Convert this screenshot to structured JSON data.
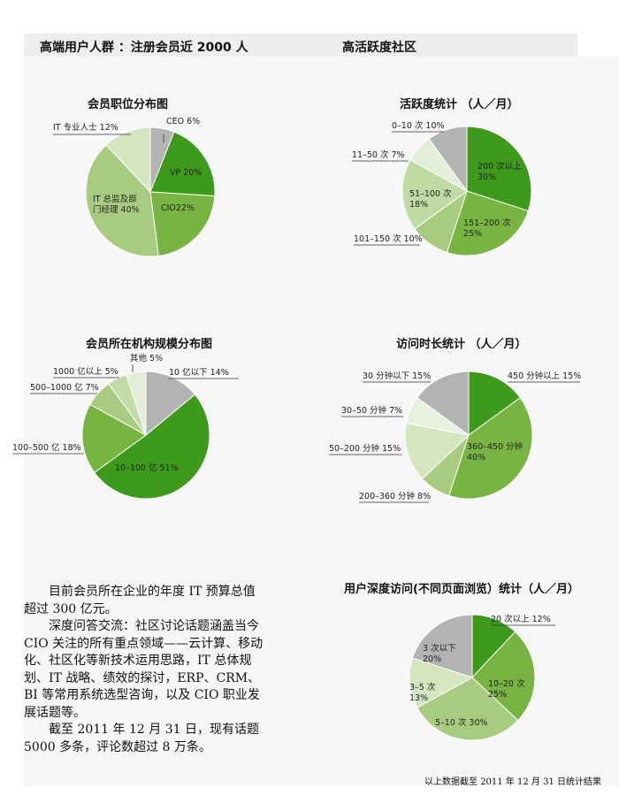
{
  "header": {
    "left": "高端用户人群 ：注册会员近 2000 人",
    "right": "高活跃度社区"
  },
  "colors": {
    "header_bg": "#eeeeee",
    "section_bg": "#f7f7f7",
    "green_dark": "#3e9a1a",
    "green_mid": "#78b442",
    "green_light": "#a7cc7f",
    "green_pale": "#d3e6c0",
    "gray": "#b3b3b3"
  },
  "chart_data": [
    {
      "type": "pie",
      "title": "会员职位分布图",
      "slices": [
        {
          "label": "CEO 6%",
          "value": 6,
          "color": "#b3b3b3"
        },
        {
          "label": "VP 20%",
          "value": 20,
          "color": "#3e9a1a"
        },
        {
          "label": "CIO22%",
          "value": 22,
          "color": "#78b442"
        },
        {
          "label": "IT 总监及部门经理 40%",
          "value": 40,
          "color": "#a7cc7f"
        },
        {
          "label": "IT 专业人士 12%",
          "value": 12,
          "color": "#d3e6c0"
        }
      ]
    },
    {
      "type": "pie",
      "title": "活跃度统计 （人／月）",
      "slices": [
        {
          "label": "200 次以上 30%",
          "value": 30,
          "color": "#3e9a1a"
        },
        {
          "label": "151–200 次 25%",
          "value": 25,
          "color": "#78b442"
        },
        {
          "label": "101–150 次 10%",
          "value": 10,
          "color": "#a7cc7f"
        },
        {
          "label": "51–100 次 18%",
          "value": 18,
          "color": "#bfdaa2"
        },
        {
          "label": "11–50 次 7%",
          "value": 7,
          "color": "#e3eed8"
        },
        {
          "label": "0–10 次 10%",
          "value": 10,
          "color": "#b3b3b3"
        }
      ]
    },
    {
      "type": "pie",
      "title": "会员所在机构规模分布图",
      "slices": [
        {
          "label": "10 亿以下 14%",
          "value": 14,
          "color": "#b3b3b3"
        },
        {
          "label": "10–100 亿 51%",
          "value": 51,
          "color": "#3e9a1a"
        },
        {
          "label": "100–500 亿 18%",
          "value": 18,
          "color": "#78b442"
        },
        {
          "label": "500–1000 亿 7%",
          "value": 7,
          "color": "#a7cc7f"
        },
        {
          "label": "1000 亿以上 5%",
          "value": 5,
          "color": "#c3dca9"
        },
        {
          "label": "其他 5%",
          "value": 5,
          "color": "#e3eed8"
        }
      ]
    },
    {
      "type": "pie",
      "title": "访问时长统计 （人／月）",
      "slices": [
        {
          "label": "450 分钟以上 15%",
          "value": 15,
          "color": "#3e9a1a"
        },
        {
          "label": "360–450 分钟 40%",
          "value": 40,
          "color": "#78b442"
        },
        {
          "label": "200–360 分钟 8%",
          "value": 8,
          "color": "#a7cc7f"
        },
        {
          "label": "50–200 分钟 15%",
          "value": 15,
          "color": "#d3e6c0"
        },
        {
          "label": "30–50 分钟 7%",
          "value": 7,
          "color": "#e8f0df"
        },
        {
          "label": "30 分钟以下 15%",
          "value": 15,
          "color": "#b3b3b3"
        }
      ]
    },
    {
      "type": "pie",
      "title": "用户深度访问(不同页面浏览）统计（人／月）",
      "slices": [
        {
          "label": "20 次以上 12%",
          "value": 12,
          "color": "#3e9a1a"
        },
        {
          "label": "10–20 次 25%",
          "value": 25,
          "color": "#78b442"
        },
        {
          "label": "5–10 次 30%",
          "value": 30,
          "color": "#a7cc7f"
        },
        {
          "label": "3–5 次 13%",
          "value": 13,
          "color": "#d3e6c0"
        },
        {
          "label": "3 次以下 20%",
          "value": 20,
          "color": "#b3b3b3"
        }
      ]
    }
  ],
  "body": {
    "p1": "目前会员所在企业的年度 IT 预算总值超过 300 亿元。",
    "p2": "深度问答交流：社区讨论话题涵盖当今 CIO 关注的所有重点领域——云计算、移动化、社区化等新技术运用思路，IT 总体规划、IT 战略、绩效的探讨，ERP、CRM、BI 等常用系统选型咨询，以及 CIO 职业发展话题等。",
    "p3": "截至 2011 年 12 月 31 日，现有话题 5000 多条，评论数超过 8 万条。"
  },
  "footnote": "以上数据截至 2011 年 12 月 31 日统计结果"
}
